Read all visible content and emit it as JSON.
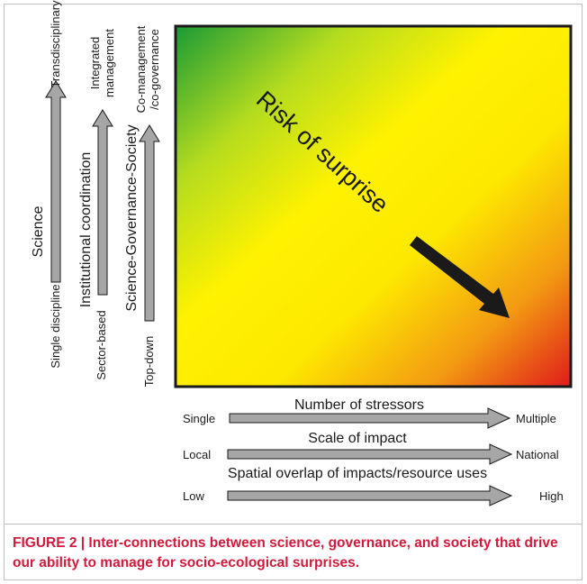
{
  "diagram": {
    "center_text": "Risk of surprise",
    "vertical_axes": [
      {
        "title": "Science",
        "low": "Single discipline",
        "high": "Transdisciplinary"
      },
      {
        "title": "Institutional coordination",
        "low": "Sector-based",
        "high_line1": "Integrated",
        "high_line2": "management"
      },
      {
        "title": "Science-Governance-Society",
        "low": "Top-down",
        "high_line1": "Co-management",
        "high_line2": "/co-governance"
      }
    ],
    "horizontal_axes": [
      {
        "title": "Number of stressors",
        "low": "Single",
        "high": "Multiple"
      },
      {
        "title": "Scale of impact",
        "low": "Local",
        "high": "National"
      },
      {
        "title": "Spatial overlap of impacts/resource uses",
        "low": "Low",
        "high": "High"
      }
    ],
    "colors": {
      "gradient_low_risk": "#1a9a36",
      "gradient_mid": "#fff200",
      "gradient_high_risk": "#e01b1b",
      "arrow_fill": "#a6a6a6",
      "big_arrow": "#1a1a1a"
    }
  },
  "caption": "FIGURE 2 | Inter-connections between science, governance, and society that drive our ability to manage for socio-ecological surprises."
}
